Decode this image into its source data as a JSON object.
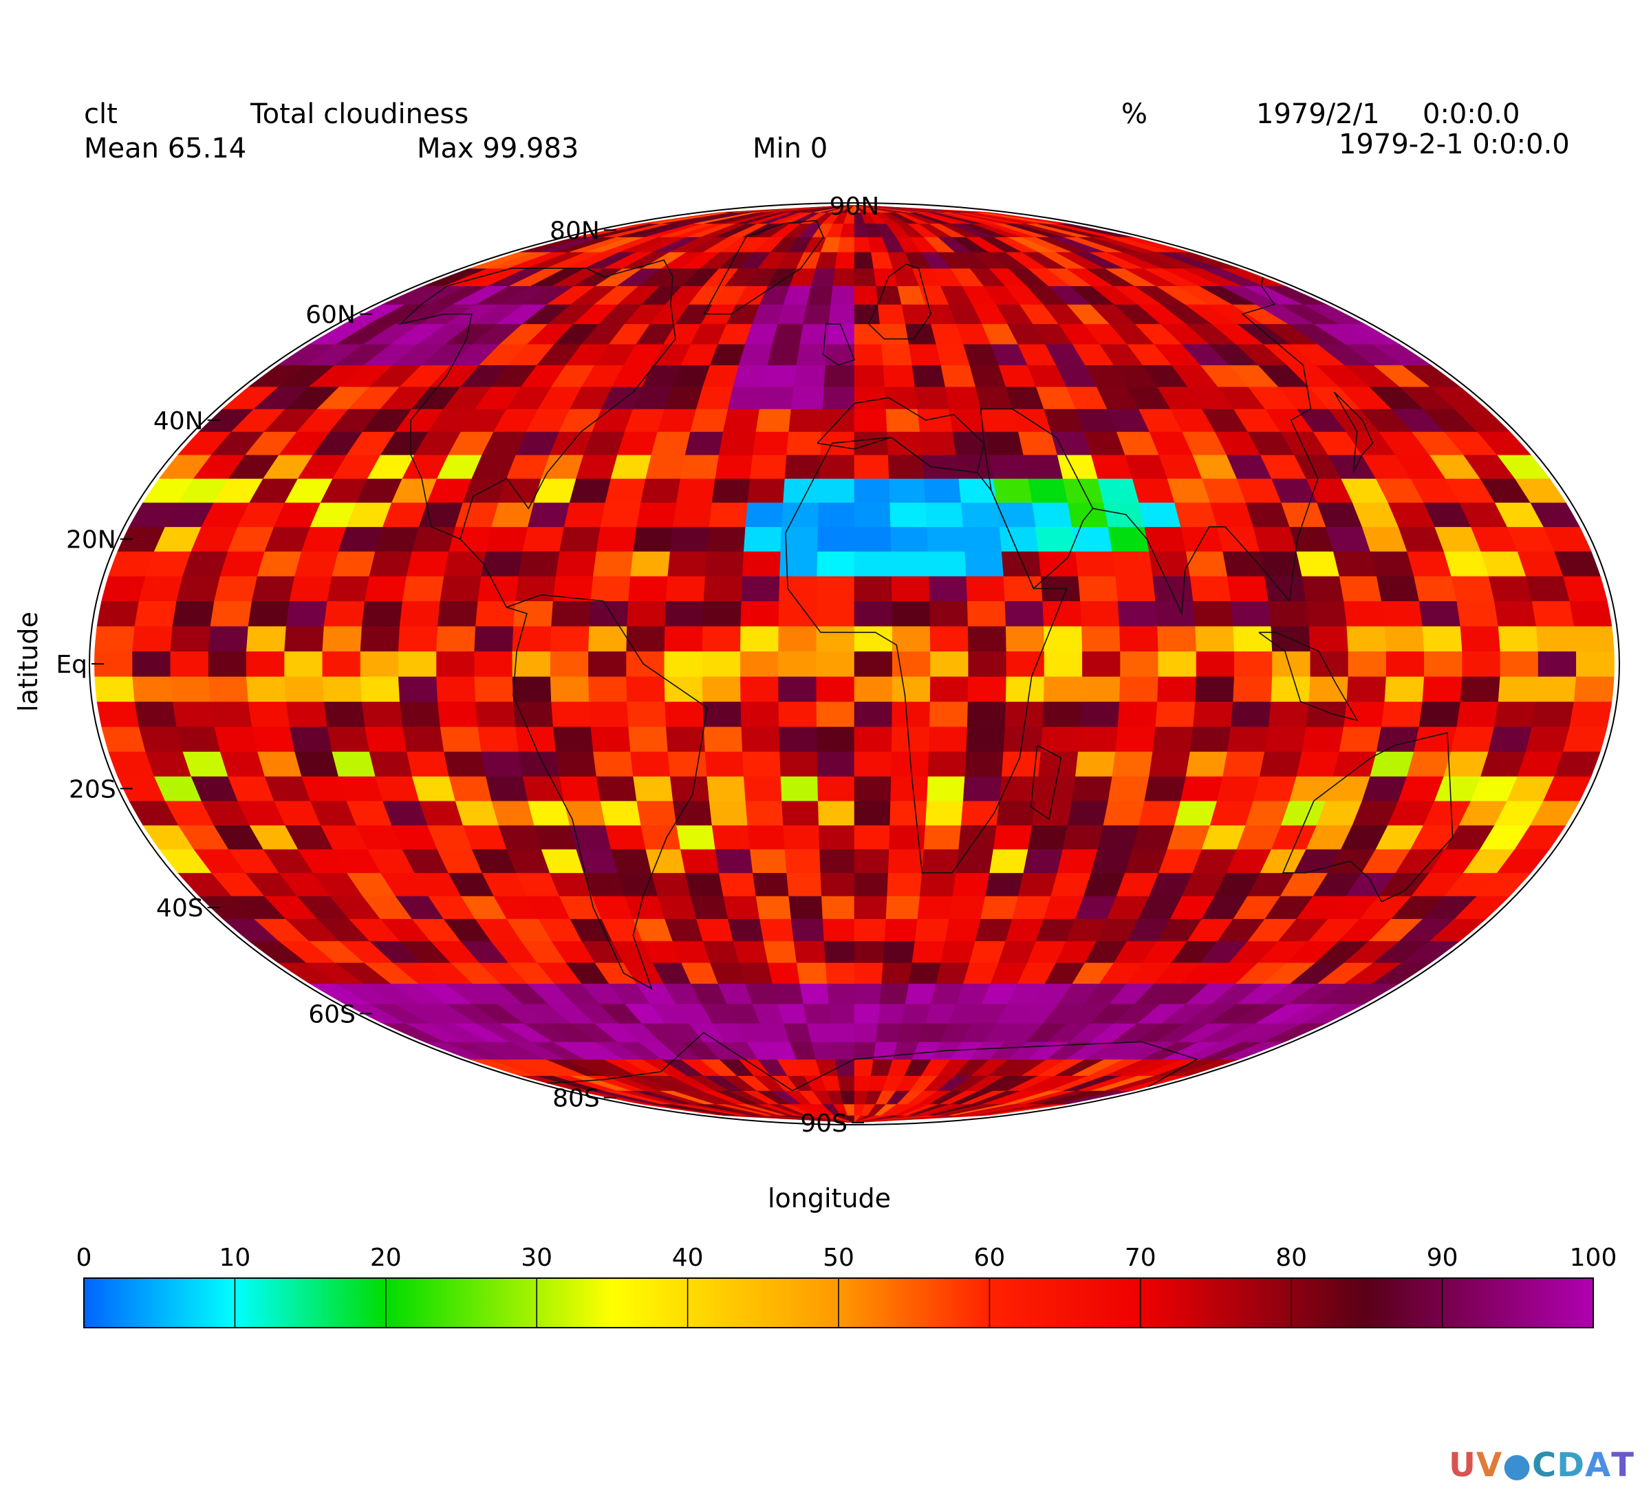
{
  "header": {
    "variable": "clt",
    "long_name": "Total cloudiness",
    "units": "%",
    "date1": "1979/2/1",
    "time1": "0:0:0.0",
    "date2": "1979-2-1 0:0:0.0",
    "mean": "Mean 65.14",
    "max": "Max 99.983",
    "min": "Min 0"
  },
  "chart_data": {
    "type": "heatmap",
    "projection": "Mollweide",
    "xlabel": "longitude",
    "ylabel": "latitude",
    "lat_ticks": [
      "80N",
      "60N",
      "40N",
      "20N",
      "Eq",
      "20S",
      "40S",
      "60S",
      "80S",
      "90S"
    ],
    "lat_tick_values": [
      80,
      60,
      40,
      20,
      0,
      -20,
      -40,
      -60,
      -80,
      -90
    ],
    "top_label": "90N",
    "colorbar": {
      "ticks": [
        0,
        10,
        20,
        30,
        40,
        50,
        60,
        70,
        80,
        90,
        100
      ],
      "colors": [
        "#0064ff",
        "#00ffff",
        "#00dc00",
        "#ffff00",
        "#ff9900",
        "#ff2200",
        "#ee0000",
        "#5a0018",
        "#b000b0"
      ],
      "color_stops": [
        0,
        10,
        20,
        35,
        50,
        60,
        70,
        85,
        100
      ]
    },
    "grid": "on"
  },
  "logo": {
    "text": "UV-CDAT",
    "letters": [
      "U",
      "V",
      "●",
      "C",
      "D",
      "A",
      "T"
    ],
    "colors": [
      "#d9534f",
      "#e07b39",
      "#3a8fd1",
      "#2c8fb0",
      "#3aa0c9",
      "#4a90e2",
      "#6a5acd"
    ]
  }
}
